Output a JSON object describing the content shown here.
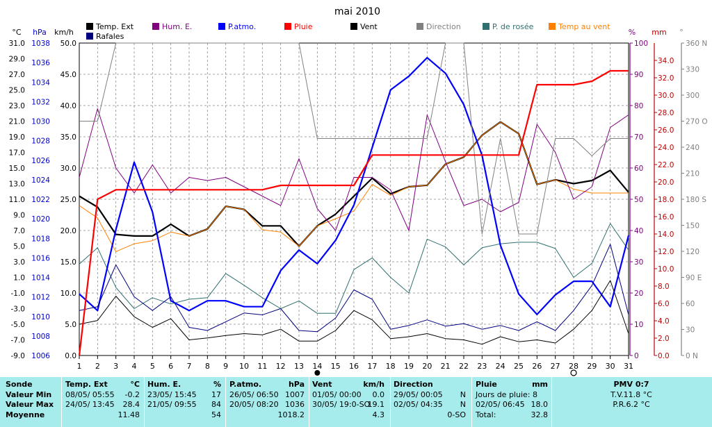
{
  "chart_data": {
    "type": "line",
    "title": "mai 2010",
    "x": [
      1,
      2,
      3,
      4,
      5,
      6,
      7,
      8,
      9,
      10,
      11,
      12,
      13,
      14,
      15,
      16,
      17,
      18,
      19,
      20,
      21,
      22,
      23,
      24,
      25,
      26,
      27,
      28,
      29,
      30,
      31
    ],
    "legend": [
      {
        "name": "Temp. Ext",
        "color": "#000000"
      },
      {
        "name": "Hum. E.",
        "color": "#800080"
      },
      {
        "name": "P.atmo.",
        "color": "#0000ff"
      },
      {
        "name": "Pluie",
        "color": "#ff0000"
      },
      {
        "name": "Vent",
        "color": "#000000"
      },
      {
        "name": "Direction",
        "color": "#808080"
      },
      {
        "name": "P. de rosée",
        "color": "#2f6f6f"
      },
      {
        "name": "Temp au vent",
        "color": "#ff8000"
      },
      {
        "name": "Rafales",
        "color": "#000080"
      }
    ],
    "axes": {
      "temp": {
        "unit": "°C",
        "min": -9,
        "max": 31,
        "ticks": [
          "31.0",
          "29.0",
          "27.0",
          "25.0",
          "23.0",
          "21.0",
          "19.0",
          "17.0",
          "15.0",
          "13.0",
          "11.0",
          "9.0",
          "7.0",
          "5.0",
          "3.0",
          "1.0",
          "-1.0",
          "-3.0",
          "-5.0",
          "-7.0",
          "-9.0"
        ]
      },
      "pressure": {
        "unit": "hPa",
        "min": 1006,
        "max": 1038,
        "ticks": [
          "1038",
          "1036",
          "1034",
          "1032",
          "1030",
          "1028",
          "1026",
          "1024",
          "1022",
          "1020",
          "1018",
          "1016",
          "1014",
          "1012",
          "1010",
          "1008",
          "1006"
        ]
      },
      "wind": {
        "unit": "km/h",
        "min": 0,
        "max": 50,
        "ticks": [
          "50.0",
          "45.0",
          "40.0",
          "35.0",
          "30.0",
          "25.0",
          "20.0",
          "15.0",
          "10.0",
          "5.0",
          "0.0"
        ]
      },
      "humidity": {
        "unit": "%",
        "min": 0,
        "max": 100,
        "ticks": [
          "100",
          "90",
          "80",
          "70",
          "60",
          "50",
          "40",
          "30",
          "20",
          "10",
          "0"
        ]
      },
      "rain": {
        "unit": "mm",
        "min": 0,
        "max": 36,
        "ticks": [
          "34.0",
          "32.0",
          "30.0",
          "28.0",
          "26.0",
          "24.0",
          "22.0",
          "20.0",
          "18.0",
          "16.0",
          "14.0",
          "12.0",
          "10.0",
          "8.0",
          "6.0",
          "4.0",
          "2.0",
          "0.0"
        ]
      },
      "direction": {
        "unit": "°",
        "min": 0,
        "max": 360,
        "ticks": [
          "360 N",
          "330",
          "300",
          "270 O",
          "240",
          "210",
          "180 S",
          "150",
          "120",
          "90 E",
          "60",
          "30",
          "0 N"
        ]
      }
    },
    "markers": [
      {
        "x": 14,
        "symbol": "full-moon"
      },
      {
        "x": 28,
        "symbol": "new-moon"
      }
    ],
    "series": [
      {
        "name": "Temp. Ext",
        "axis": "temp",
        "color": "#000000",
        "width": 2.2,
        "values": [
          11.4,
          10.0,
          6.5,
          6.3,
          6.3,
          7.8,
          6.3,
          7.2,
          10.1,
          9.7,
          7.6,
          7.6,
          5.0,
          7.6,
          9.1,
          11.4,
          13.7,
          11.7,
          12.6,
          12.8,
          15.5,
          16.4,
          19.2,
          20.9,
          19.4,
          12.9,
          13.5,
          13.0,
          13.4,
          14.7,
          11.9
        ]
      },
      {
        "name": "Temp au vent",
        "axis": "temp",
        "color": "#ff8000",
        "width": 1,
        "values": [
          10.2,
          8.6,
          4.3,
          5.3,
          5.7,
          6.8,
          6.3,
          7.2,
          10.1,
          9.7,
          7.1,
          6.8,
          5.0,
          7.6,
          8.5,
          9.5,
          12.9,
          11.5,
          12.6,
          12.8,
          15.5,
          16.4,
          19.2,
          20.9,
          19.4,
          12.9,
          13.5,
          12.3,
          11.8,
          11.8,
          11.8
        ]
      },
      {
        "name": "P. de rosée",
        "axis": "temp",
        "color": "#2f6f6f",
        "width": 1,
        "values": [
          2.7,
          4.8,
          -0.3,
          -3.0,
          -1.6,
          -2.4,
          -1.8,
          -1.6,
          1.5,
          0.0,
          -1.6,
          -3.0,
          -2.0,
          -3.6,
          -3.6,
          2.0,
          3.5,
          1.0,
          -1.0,
          5.9,
          4.9,
          2.6,
          4.8,
          5.3,
          5.5,
          5.5,
          4.7,
          1.0,
          2.8,
          7.9,
          4.5
        ]
      },
      {
        "name": "Hum. E.",
        "axis": "humidity",
        "color": "#800080",
        "width": 1,
        "values": [
          57,
          79,
          60,
          52,
          61,
          52,
          57,
          56,
          57,
          54,
          51,
          48,
          63,
          47,
          40,
          57,
          57,
          53,
          40,
          77,
          62,
          48,
          50,
          46,
          49,
          74,
          65,
          50,
          54,
          73,
          77
        ]
      },
      {
        "name": "P.atmo.",
        "axis": "pressure",
        "color": "#0000ff",
        "width": 2.2,
        "values": [
          1012.3,
          1010.6,
          1018.9,
          1025.8,
          1020.7,
          1011.6,
          1010.6,
          1011.6,
          1011.6,
          1011.0,
          1011.0,
          1014.7,
          1016.8,
          1015.4,
          1017.8,
          1021.4,
          1027.3,
          1033.2,
          1034.6,
          1036.5,
          1034.9,
          1031.7,
          1026.5,
          1017.3,
          1012.3,
          1010.2,
          1012.2,
          1013.6,
          1013.6,
          1011.0,
          1018.3
        ]
      },
      {
        "name": "Rafales",
        "axis": "wind",
        "color": "#000080",
        "width": 1,
        "values": [
          7.2,
          7.8,
          14.5,
          9.4,
          7.2,
          9.4,
          4.5,
          4.0,
          5.4,
          6.8,
          6.5,
          7.5,
          4.0,
          3.8,
          6.0,
          10.5,
          9.0,
          4.2,
          4.8,
          5.7,
          4.7,
          5.1,
          4.2,
          4.8,
          4.0,
          5.4,
          4.0,
          7.2,
          11.2,
          17.8,
          6.5
        ]
      },
      {
        "name": "Vent",
        "axis": "wind",
        "color": "#000000",
        "width": 1,
        "values": [
          5.0,
          5.6,
          9.5,
          6.2,
          4.5,
          5.9,
          2.5,
          2.8,
          3.2,
          3.5,
          3.3,
          4.2,
          2.3,
          2.3,
          4.0,
          7.2,
          5.7,
          2.7,
          3.0,
          3.5,
          2.7,
          2.5,
          1.8,
          3.0,
          2.2,
          2.5,
          2.0,
          4.2,
          7.2,
          12.0,
          3.5
        ]
      },
      {
        "name": "Direction",
        "axis": "direction",
        "color": "#808080",
        "width": 1,
        "values": [
          270,
          270,
          360,
          360,
          360,
          360,
          360,
          360,
          360,
          360,
          360,
          360,
          360,
          250,
          250,
          250,
          250,
          250,
          250,
          250,
          360,
          360,
          140,
          250,
          140,
          140,
          250,
          250,
          230,
          250,
          250
        ]
      },
      {
        "name": "Pluie",
        "axis": "rain",
        "color": "#ff0000",
        "width": 2.2,
        "values": [
          0.0,
          18.0,
          19.1,
          19.1,
          19.1,
          19.1,
          19.1,
          19.1,
          19.1,
          19.1,
          19.1,
          19.6,
          19.6,
          19.6,
          19.6,
          19.6,
          23.1,
          23.1,
          23.1,
          23.1,
          23.1,
          23.1,
          23.1,
          23.1,
          23.1,
          31.2,
          31.2,
          31.2,
          31.6,
          32.8,
          32.8
        ]
      }
    ]
  },
  "table": {
    "labels": {
      "sonde": "Sonde",
      "min": "Valeur Min",
      "max": "Valeur Max",
      "moy": "Moyenne"
    },
    "temp": {
      "title": "Temp. Ext",
      "unit": "°C",
      "min_date": "08/05/  05:55",
      "min_val": "-0.2",
      "max_date": "24/05/  13:45",
      "max_val": "28.4",
      "avg": "11.48"
    },
    "hum": {
      "title": "Hum. E.",
      "unit": "%",
      "min_date": "23/05/  15:45",
      "min_val": "17",
      "max_date": "21/05/  09:55",
      "max_val": "84",
      "avg": "54"
    },
    "press": {
      "title": "P.atmo.",
      "unit": "hPa",
      "min_date": "26/05/  06:50",
      "min_val": "1007",
      "max_date": "20/05/  08:20",
      "max_val": "1036",
      "avg": "1018.2"
    },
    "wind": {
      "title": "Vent",
      "unit": "km/h",
      "min_date": "01/05/  00:00",
      "min_val": "0.0",
      "max_date": "30/05/  19:0-SO",
      "max_val": "19.1",
      "avg": "4.3"
    },
    "dir": {
      "title": "Direction",
      "min_date": "29/05/  00:05",
      "min_val": "N",
      "max_date": "02/05/  04:35",
      "max_val": "N",
      "avg": "0-SO"
    },
    "rain": {
      "title": "Pluie",
      "unit": "mm",
      "line1": "Jours de pluie: 8",
      "line2_date": "02/05/  06:45",
      "line2_val": "18.0",
      "line3_label": "Total:",
      "line3_val": "32.8"
    },
    "pmv": {
      "title": "PMV 0:7",
      "tv": "T.V.11.8 °C",
      "pr": "P.R.6.2 °C"
    }
  }
}
